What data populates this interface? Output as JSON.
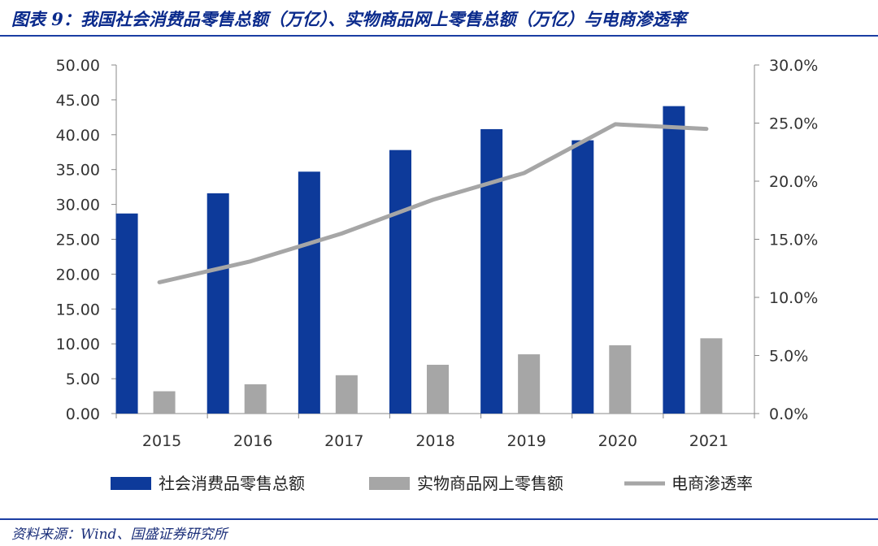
{
  "header": {
    "title": "图表 9：我国社会消费品零售总额（万亿）、实物商品网上零售总额（万亿）与电商渗透率"
  },
  "footer": {
    "source": "资料来源：Wind、国盛证券研究所"
  },
  "colors": {
    "retail_bar": "#0d3a9a",
    "online_bar": "#a6a6a6",
    "penetration_line": "#a6a6a6",
    "rule": "#1b3ea3"
  },
  "chart_data": {
    "type": "bar",
    "title": "",
    "categories": [
      "2015",
      "2016",
      "2017",
      "2018",
      "2019",
      "2020",
      "2021"
    ],
    "series": [
      {
        "name": "社会消费品零售总额",
        "type": "bar",
        "axis": "left",
        "values": [
          28.7,
          31.6,
          34.7,
          37.8,
          40.8,
          39.2,
          44.1
        ]
      },
      {
        "name": "实物商品网上零售额",
        "type": "bar",
        "axis": "left",
        "values": [
          3.2,
          4.2,
          5.5,
          7.0,
          8.5,
          9.8,
          10.8
        ]
      },
      {
        "name": "电商渗透率",
        "type": "line",
        "axis": "right",
        "values": [
          0.113,
          0.131,
          0.155,
          0.184,
          0.207,
          0.249,
          0.245
        ]
      }
    ],
    "y_left": {
      "min": 0,
      "max": 50,
      "ticks": [
        "0.00",
        "5.00",
        "10.00",
        "15.00",
        "20.00",
        "25.00",
        "30.00",
        "35.00",
        "40.00",
        "45.00",
        "50.00"
      ]
    },
    "y_right": {
      "min": 0,
      "max": 0.3,
      "ticks": [
        "0.0%",
        "5.0%",
        "10.0%",
        "15.0%",
        "20.0%",
        "25.0%",
        "30.0%"
      ]
    },
    "grid": false,
    "legend_position": "bottom"
  }
}
